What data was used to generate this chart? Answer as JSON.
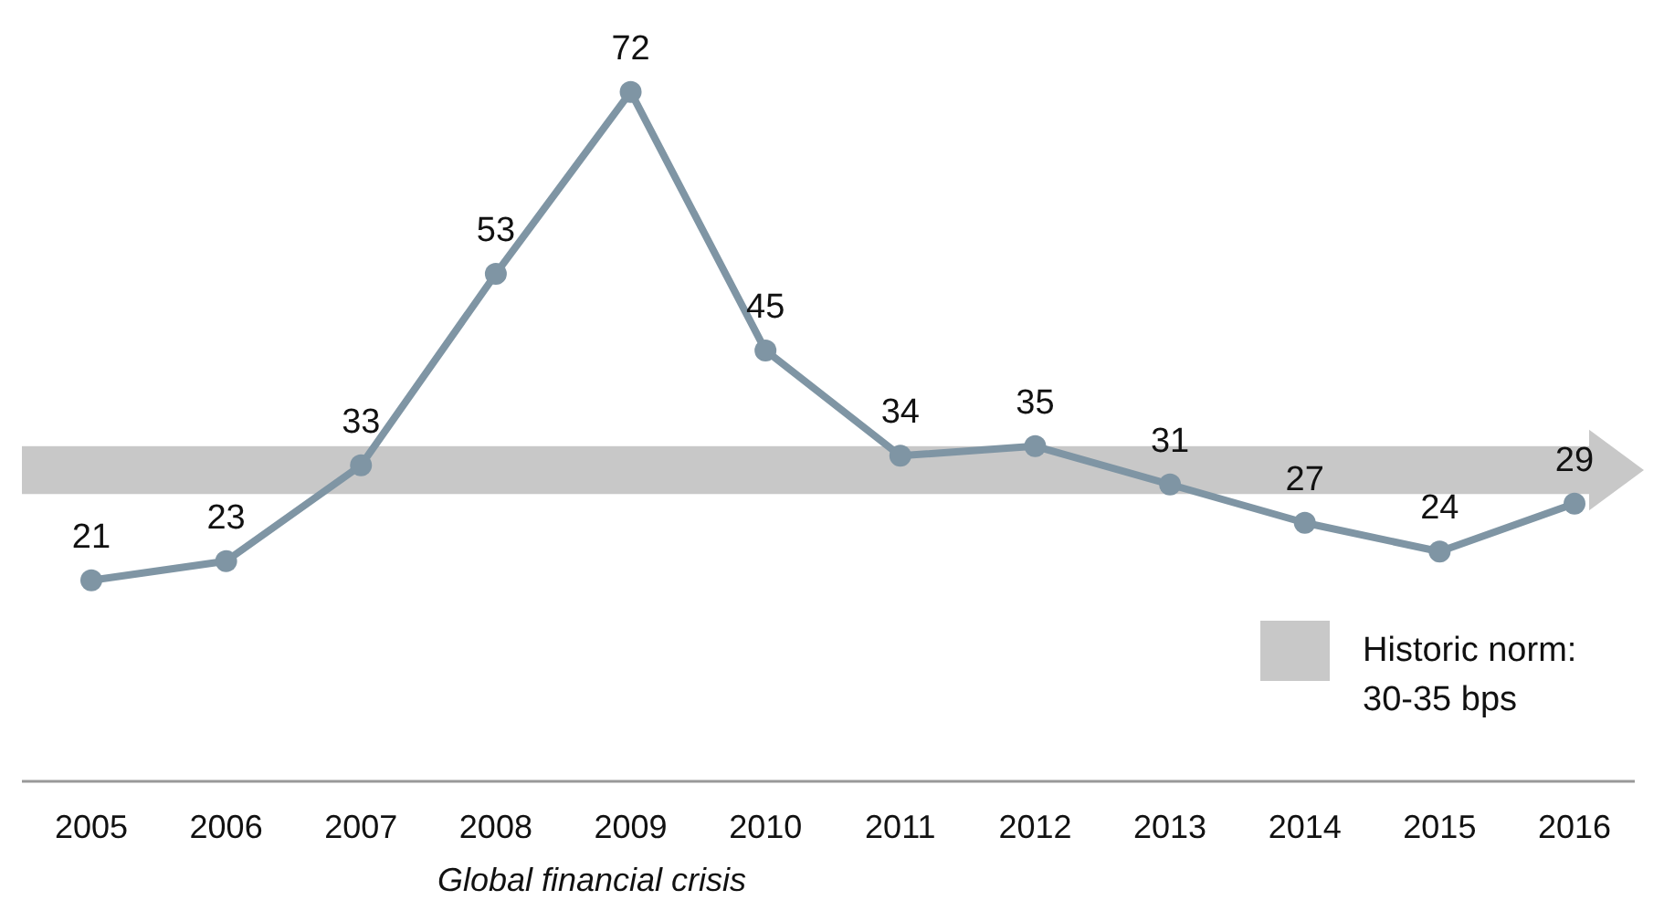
{
  "chart_data": {
    "type": "line",
    "categories": [
      "2005",
      "2006",
      "2007",
      "2008",
      "2009",
      "2010",
      "2011",
      "2012",
      "2013",
      "2014",
      "2015",
      "2016"
    ],
    "series": [
      {
        "color": "#7f95a4",
        "values": [
          21,
          23,
          33,
          53,
          72,
          45,
          34,
          35,
          31,
          27,
          24,
          29
        ]
      }
    ],
    "data_labels": true,
    "marker": "circle",
    "line_style": "solid",
    "tick_labels": "x",
    "bands": [
      {
        "axis": "y",
        "from": 30,
        "to": 35,
        "label": "Historic norm: 30-35 bps",
        "color": "#c8c8c8"
      }
    ],
    "annotations": [
      "Global financial crisis"
    ]
  }
}
